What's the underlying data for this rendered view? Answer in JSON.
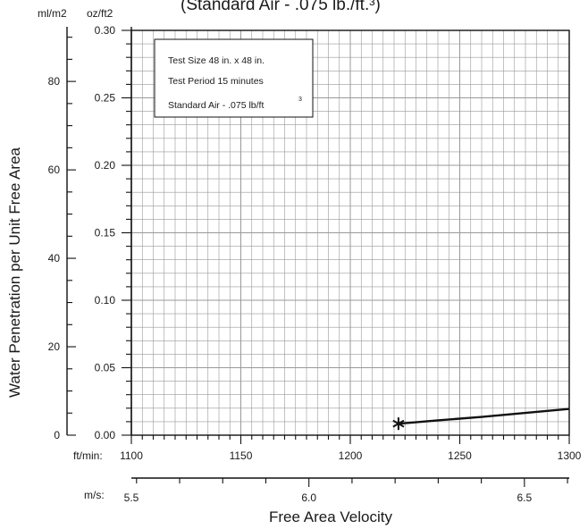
{
  "chart_data": {
    "type": "line",
    "title_partial": "(Standard Air - .075 lb./ft.³)",
    "xlabel": "Free Area Velocity",
    "ylabel": "Water Penetration per Unit Free Area",
    "x_units": {
      "primary": "ft/min:",
      "secondary": "m/s:"
    },
    "y_units": {
      "primary": "oz/ft2",
      "secondary": "ml/m2"
    },
    "xlim": [
      1100,
      1300
    ],
    "ylim": [
      0,
      0.3
    ],
    "x_ticks": [
      "1100",
      "1150",
      "1200",
      "1250",
      "1300"
    ],
    "x_secondary_ticks": [
      "5.5",
      "6.0",
      "6.5"
    ],
    "y_ticks": [
      "0.00",
      "0.05",
      "0.10",
      "0.15",
      "0.20",
      "0.25",
      "0.30"
    ],
    "y_secondary_ticks": [
      "0",
      "20",
      "40",
      "60",
      "80"
    ],
    "grid": true,
    "legend_position": "top-left",
    "annotation": {
      "lines": [
        "Test Size 48 in. x 48 in.",
        "Test Period 15 minutes",
        "Standard Air - .075 lb/ft"
      ],
      "superscript": "3"
    },
    "series": [
      {
        "x": [
          1222,
          1240,
          1260,
          1280,
          1300
        ],
        "y": [
          0.0085,
          0.011,
          0.0135,
          0.0165,
          0.0195
        ]
      }
    ],
    "marker": {
      "x": 1222,
      "y": 0.0085,
      "symbol": "asterisk"
    },
    "colors": {
      "line": "#111111",
      "grid": "#999999",
      "axis": "#111111"
    }
  }
}
